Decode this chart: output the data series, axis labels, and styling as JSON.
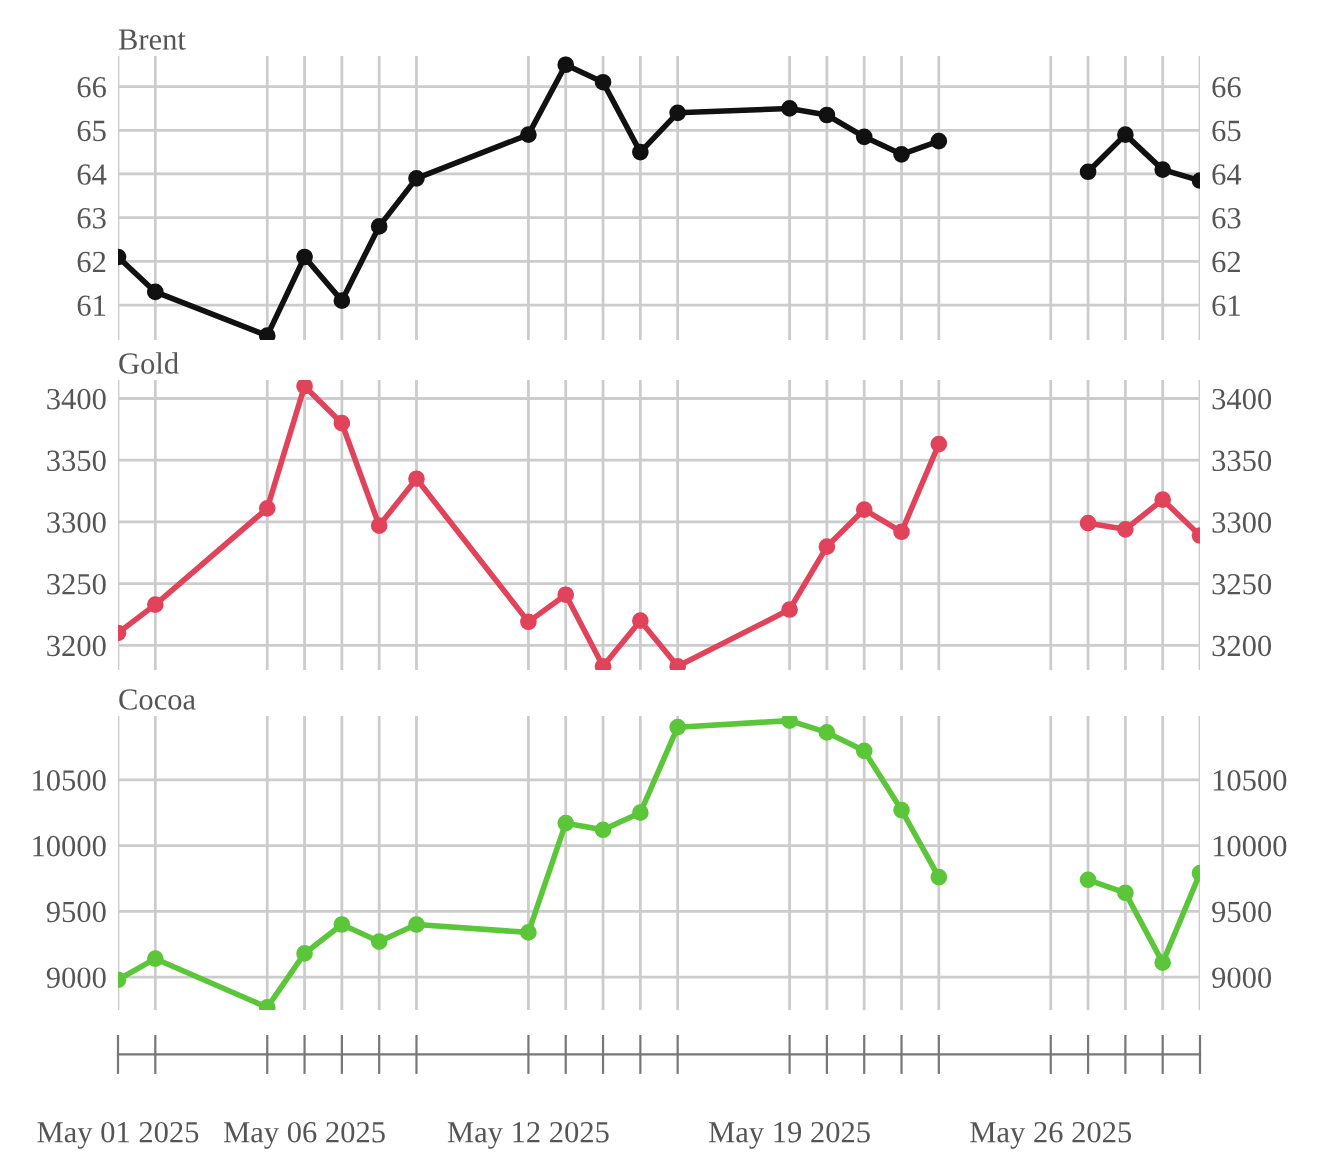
{
  "chart_data": [
    {
      "type": "line",
      "title": "Brent",
      "x": [
        "2025-05-01",
        "2025-05-02",
        "2025-05-05",
        "2025-05-06",
        "2025-05-07",
        "2025-05-08",
        "2025-05-09",
        "2025-05-12",
        "2025-05-13",
        "2025-05-14",
        "2025-05-15",
        "2025-05-16",
        "2025-05-19",
        "2025-05-20",
        "2025-05-21",
        "2025-05-22",
        "2025-05-23",
        "2025-05-26",
        "2025-05-27",
        "2025-05-28",
        "2025-05-29",
        "2025-05-30"
      ],
      "series": [
        {
          "color": "#111111",
          "values": [
            62.1,
            61.3,
            60.3,
            62.1,
            61.1,
            62.8,
            63.9,
            64.9,
            66.5,
            66.1,
            64.5,
            65.4,
            65.5,
            65.35,
            64.85,
            64.45,
            64.75,
            null,
            64.05,
            64.9,
            64.1,
            63.85
          ]
        }
      ],
      "xlim": [
        "2025-05-01",
        "2025-05-30"
      ],
      "xticks": [
        {
          "value": "2025-05-01",
          "label": null
        },
        {
          "value": "2025-05-02",
          "label": null
        },
        {
          "value": "2025-05-05",
          "label": null
        },
        {
          "value": "2025-05-06",
          "label": null
        },
        {
          "value": "2025-05-07",
          "label": null
        },
        {
          "value": "2025-05-08",
          "label": null
        },
        {
          "value": "2025-05-09",
          "label": null
        },
        {
          "value": "2025-05-12",
          "label": null
        },
        {
          "value": "2025-05-13",
          "label": null
        },
        {
          "value": "2025-05-14",
          "label": null
        },
        {
          "value": "2025-05-15",
          "label": null
        },
        {
          "value": "2025-05-16",
          "label": null
        },
        {
          "value": "2025-05-19",
          "label": null
        },
        {
          "value": "2025-05-20",
          "label": null
        },
        {
          "value": "2025-05-21",
          "label": null
        },
        {
          "value": "2025-05-22",
          "label": null
        },
        {
          "value": "2025-05-23",
          "label": null
        },
        {
          "value": "2025-05-26",
          "label": null
        },
        {
          "value": "2025-05-27",
          "label": null
        },
        {
          "value": "2025-05-28",
          "label": null
        },
        {
          "value": "2025-05-29",
          "label": null
        },
        {
          "value": "2025-05-30",
          "label": null
        }
      ],
      "ylim": [
        60.2,
        66.7
      ],
      "yticks": [
        61,
        62,
        63,
        64,
        65,
        66
      ],
      "y2lim": [
        60.2,
        66.7
      ],
      "y2ticks": [
        61,
        62,
        63,
        64,
        65,
        66
      ],
      "tick_labels": "y",
      "grid": true,
      "marker": "circle",
      "line_style": "solid"
    },
    {
      "type": "line",
      "title": "Gold",
      "x": [
        "2025-05-01",
        "2025-05-02",
        "2025-05-05",
        "2025-05-06",
        "2025-05-07",
        "2025-05-08",
        "2025-05-09",
        "2025-05-12",
        "2025-05-13",
        "2025-05-14",
        "2025-05-15",
        "2025-05-16",
        "2025-05-19",
        "2025-05-20",
        "2025-05-21",
        "2025-05-22",
        "2025-05-23",
        "2025-05-26",
        "2025-05-27",
        "2025-05-28",
        "2025-05-29",
        "2025-05-30"
      ],
      "series": [
        {
          "color": "#e0435a",
          "values": [
            3210,
            3233,
            3311,
            3410,
            3380,
            3297,
            3335,
            3219,
            3241,
            3183,
            3220,
            3183,
            3229,
            3280,
            3310,
            3292,
            3363,
            null,
            3299,
            3294,
            3318,
            3289
          ]
        }
      ],
      "xlim": [
        "2025-05-01",
        "2025-05-30"
      ],
      "xticks": [
        {
          "value": "2025-05-01",
          "label": null
        },
        {
          "value": "2025-05-02",
          "label": null
        },
        {
          "value": "2025-05-05",
          "label": null
        },
        {
          "value": "2025-05-06",
          "label": null
        },
        {
          "value": "2025-05-07",
          "label": null
        },
        {
          "value": "2025-05-08",
          "label": null
        },
        {
          "value": "2025-05-09",
          "label": null
        },
        {
          "value": "2025-05-12",
          "label": null
        },
        {
          "value": "2025-05-13",
          "label": null
        },
        {
          "value": "2025-05-14",
          "label": null
        },
        {
          "value": "2025-05-15",
          "label": null
        },
        {
          "value": "2025-05-16",
          "label": null
        },
        {
          "value": "2025-05-19",
          "label": null
        },
        {
          "value": "2025-05-20",
          "label": null
        },
        {
          "value": "2025-05-21",
          "label": null
        },
        {
          "value": "2025-05-22",
          "label": null
        },
        {
          "value": "2025-05-23",
          "label": null
        },
        {
          "value": "2025-05-26",
          "label": null
        },
        {
          "value": "2025-05-27",
          "label": null
        },
        {
          "value": "2025-05-28",
          "label": null
        },
        {
          "value": "2025-05-29",
          "label": null
        },
        {
          "value": "2025-05-30",
          "label": null
        }
      ],
      "ylim": [
        3180,
        3415
      ],
      "yticks": [
        3200,
        3250,
        3300,
        3350,
        3400
      ],
      "y2lim": [
        3180,
        3415
      ],
      "y2ticks": [
        3200,
        3250,
        3300,
        3350,
        3400
      ],
      "tick_labels": "y",
      "grid": true,
      "marker": "circle",
      "line_style": "solid"
    },
    {
      "type": "line",
      "title": "Cocoa",
      "x": [
        "2025-05-01",
        "2025-05-02",
        "2025-05-05",
        "2025-05-06",
        "2025-05-07",
        "2025-05-08",
        "2025-05-09",
        "2025-05-12",
        "2025-05-13",
        "2025-05-14",
        "2025-05-15",
        "2025-05-16",
        "2025-05-19",
        "2025-05-20",
        "2025-05-21",
        "2025-05-22",
        "2025-05-23",
        "2025-05-26",
        "2025-05-27",
        "2025-05-28",
        "2025-05-29",
        "2025-05-30"
      ],
      "series": [
        {
          "color": "#5cc63a",
          "values": [
            8980,
            9140,
            8770,
            9180,
            9400,
            9270,
            9400,
            9340,
            10170,
            10120,
            10250,
            10900,
            10950,
            10860,
            10720,
            10270,
            9760,
            null,
            9740,
            9640,
            9110,
            9790
          ]
        }
      ],
      "xlim": [
        "2025-05-01",
        "2025-05-30"
      ],
      "xticks": [
        {
          "value": "2025-05-01",
          "label": "May 01 2025"
        },
        {
          "value": "2025-05-02",
          "label": null
        },
        {
          "value": "2025-05-05",
          "label": null
        },
        {
          "value": "2025-05-06",
          "label": "May 06 2025"
        },
        {
          "value": "2025-05-07",
          "label": null
        },
        {
          "value": "2025-05-08",
          "label": null
        },
        {
          "value": "2025-05-09",
          "label": null
        },
        {
          "value": "2025-05-12",
          "label": "May 12 2025"
        },
        {
          "value": "2025-05-13",
          "label": null
        },
        {
          "value": "2025-05-14",
          "label": null
        },
        {
          "value": "2025-05-15",
          "label": null
        },
        {
          "value": "2025-05-16",
          "label": null
        },
        {
          "value": "2025-05-19",
          "label": "May 19 2025"
        },
        {
          "value": "2025-05-20",
          "label": null
        },
        {
          "value": "2025-05-21",
          "label": null
        },
        {
          "value": "2025-05-22",
          "label": null
        },
        {
          "value": "2025-05-23",
          "label": null
        },
        {
          "value": "2025-05-26",
          "label": "May 26 2025"
        },
        {
          "value": "2025-05-27",
          "label": null
        },
        {
          "value": "2025-05-28",
          "label": null
        },
        {
          "value": "2025-05-29",
          "label": null
        },
        {
          "value": "2025-05-30",
          "label": null
        }
      ],
      "ylim": [
        8750,
        10985
      ],
      "yticks": [
        9000,
        9500,
        10000,
        10500
      ],
      "y2lim": [
        8750,
        10985
      ],
      "y2ticks": [
        9000,
        9500,
        10000,
        10500
      ],
      "grid": true,
      "marker": "circle",
      "line_style": "solid"
    }
  ]
}
